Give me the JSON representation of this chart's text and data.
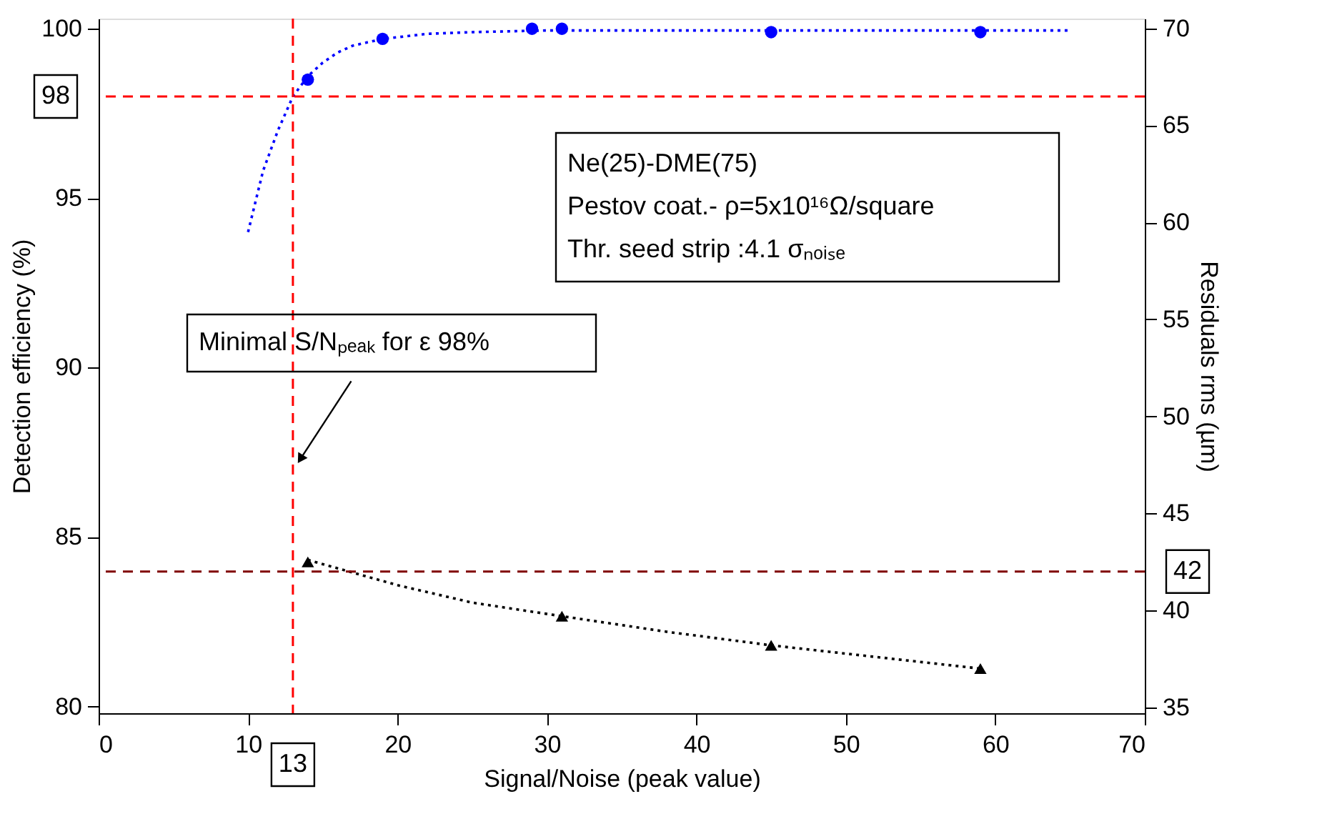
{
  "chart_data": {
    "type": "scatter",
    "xlabel": "Signal/Noise (peak value)",
    "ylabel": "Detection efficiency (%)",
    "y2label": "Residuals rms (µm)",
    "xlim": [
      0,
      70
    ],
    "xticks": [
      0,
      10,
      20,
      30,
      40,
      50,
      60,
      70
    ],
    "ylim": [
      79.8,
      100.3
    ],
    "yticks": [
      80,
      85,
      90,
      95,
      100
    ],
    "y2lim": [
      34.7,
      70.5
    ],
    "y2ticks": [
      35,
      40,
      45,
      50,
      55,
      60,
      65,
      70
    ],
    "grid": false,
    "series": [
      {
        "type": "line",
        "color": "#0000ff",
        "line_style": "dotted",
        "marker": "none",
        "x": [
          10,
          11,
          12,
          13,
          14,
          15,
          16,
          17,
          19,
          22,
          25,
          30,
          40,
          50,
          65
        ],
        "values": [
          94.0,
          95.8,
          97.0,
          98.0,
          98.6,
          99.0,
          99.3,
          99.5,
          99.7,
          99.85,
          99.9,
          99.95,
          99.95,
          99.95,
          99.95
        ]
      },
      {
        "type": "scatter",
        "color": "#0000ff",
        "marker": "circle",
        "x": [
          14,
          19,
          29,
          31,
          45,
          59
        ],
        "values": [
          98.5,
          99.7,
          100,
          100,
          99.9,
          99.9
        ]
      },
      {
        "type": "line",
        "axis": "y2",
        "color": "#000000",
        "line_style": "dotted",
        "marker": "none",
        "x": [
          14,
          20,
          25,
          31,
          38,
          45,
          52,
          59
        ],
        "values": [
          42.6,
          41.3,
          40.4,
          39.7,
          38.9,
          38.2,
          37.6,
          37.0
        ]
      },
      {
        "type": "scatter",
        "axis": "y2",
        "color": "#000000",
        "marker": "triangle",
        "x": [
          14,
          31,
          45,
          59
        ],
        "values": [
          42.5,
          39.7,
          38.2,
          37.0
        ]
      }
    ],
    "ref_lines": [
      {
        "axis": "y",
        "value": 98,
        "label": "98",
        "color": "#ff0000",
        "line_style": "dashed"
      },
      {
        "axis": "y2",
        "value": 42,
        "label": "42",
        "color": "#800000",
        "line_style": "dashed"
      },
      {
        "axis": "x",
        "value": 13,
        "label": "13",
        "color": "#ff0000",
        "line_style": "dashed"
      }
    ],
    "annotations": [
      "Ne(25)-DME(75)",
      "Pestov coat.- ρ=5x10¹⁶Ω/square",
      "Thr. seed strip :4.1 σₙₒᵢₛₑ",
      {
        "text": "Minimal S/Nₚₑₐₖ for  ε 98%",
        "x": 13.5,
        "y": 87.3
      }
    ]
  }
}
